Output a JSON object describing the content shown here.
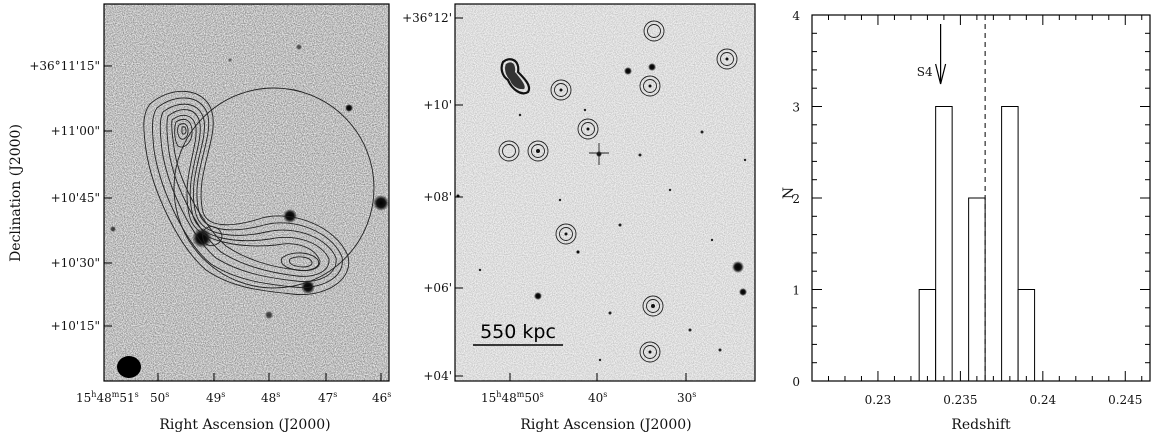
{
  "panel_left": {
    "xlabel": "Right Ascension (J2000)",
    "ylabel": "Declination (J2000)",
    "xticks": [
      {
        "h": "15",
        "hs": "h",
        "m": "48",
        "ms": "m",
        "s": "51",
        "ss": "s"
      },
      {
        "s": "50",
        "ss": "s"
      },
      {
        "s": "49",
        "ss": "s"
      },
      {
        "s": "48",
        "ss": "s"
      },
      {
        "s": "47",
        "ss": "s"
      },
      {
        "s": "46",
        "ss": "s"
      }
    ],
    "yticks": [
      "+36°11'15\"",
      "+11'00\"",
      "+10'45\"",
      "+10'30\"",
      "+10'15\""
    ]
  },
  "panel_middle": {
    "xlabel": "Right Ascension (J2000)",
    "scalebar_label": "550 kpc",
    "xticks": [
      {
        "h": "15",
        "hs": "h",
        "m": "48",
        "ms": "m",
        "s": "50",
        "ss": "s"
      },
      {
        "s": "40",
        "ss": "s"
      },
      {
        "s": "30",
        "ss": "s"
      }
    ],
    "yticks": [
      "+36°12'",
      "+10'",
      "+08'",
      "+06'",
      "+04'"
    ]
  },
  "chart_data": {
    "type": "bar",
    "xlabel": "Redshift",
    "ylabel": "N",
    "xlim": [
      0.226,
      0.2465
    ],
    "ylim": [
      0,
      4
    ],
    "xticks": [
      "0.23",
      "0.235",
      "0.24",
      "0.245"
    ],
    "yticks": [
      "0",
      "1",
      "2",
      "3",
      "4"
    ],
    "bins": [
      {
        "x0": 0.2325,
        "x1": 0.2335,
        "count": 1
      },
      {
        "x0": 0.2335,
        "x1": 0.2345,
        "count": 3
      },
      {
        "x0": 0.2355,
        "x1": 0.2365,
        "count": 2
      },
      {
        "x0": 0.2375,
        "x1": 0.2385,
        "count": 3
      },
      {
        "x0": 0.2385,
        "x1": 0.2395,
        "count": 1
      }
    ],
    "dashed_line_x": 0.2365,
    "annotation": {
      "label": "S4",
      "x": 0.2338
    }
  }
}
